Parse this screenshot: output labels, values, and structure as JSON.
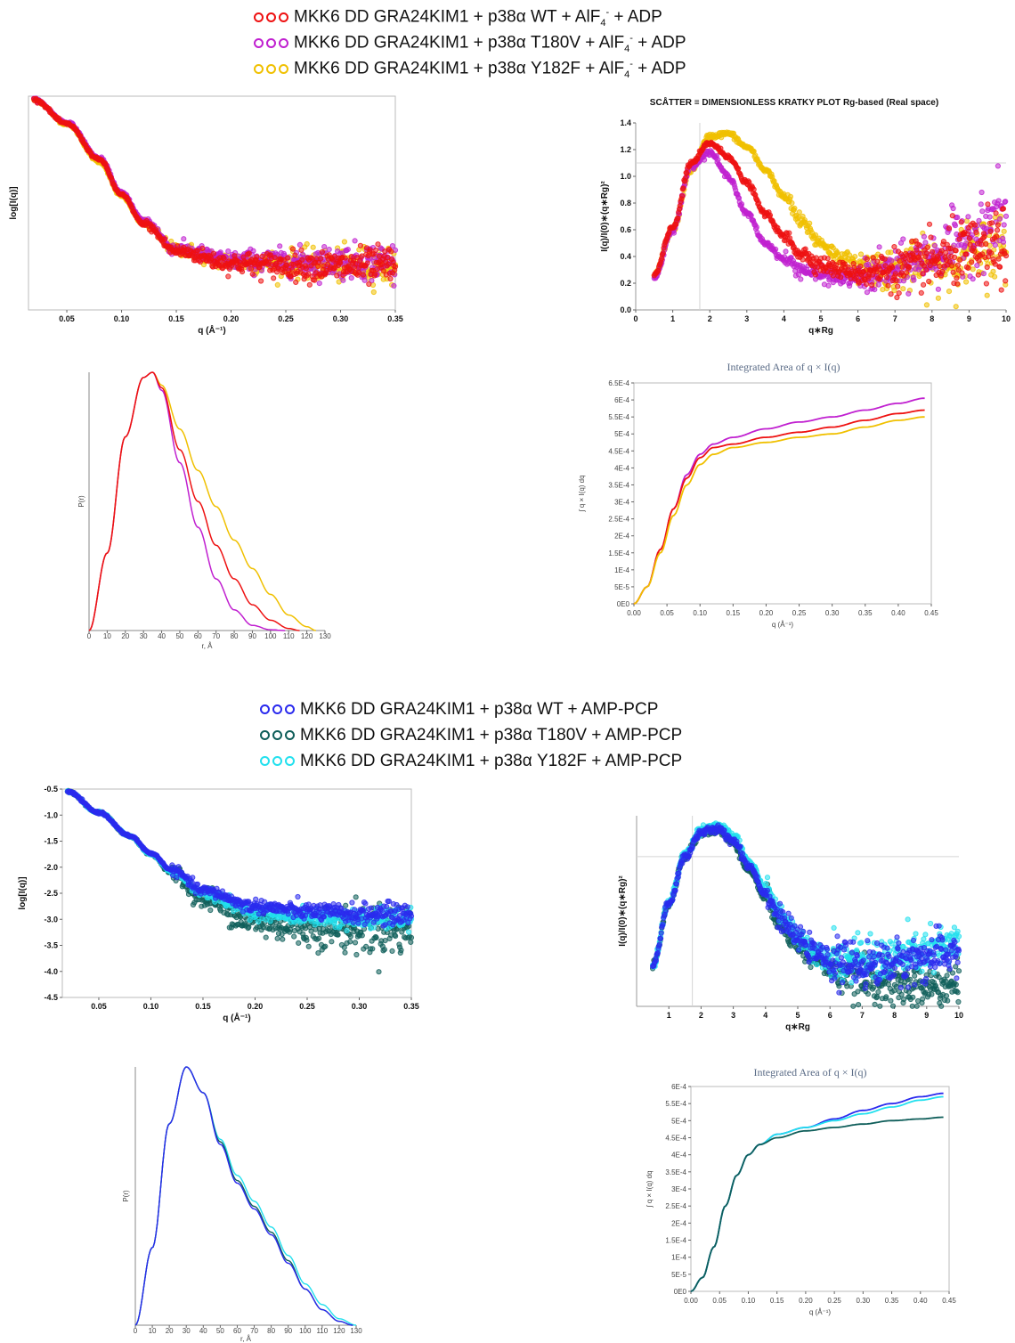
{
  "legend_top": [
    {
      "text": "MKK6 DD GRA24KIM1 + p38α WT + AlF",
      "sub": "4",
      "sup": "-",
      "tail": " + ADP",
      "color": "#ee1111"
    },
    {
      "text": "MKK6 DD GRA24KIM1 + p38α T180V + AlF",
      "sub": "4",
      "sup": "-",
      "tail": " + ADP",
      "color": "#c020d0"
    },
    {
      "text": "MKK6 DD GRA24KIM1 + p38α Y182F + AlF",
      "sub": "4",
      "sup": "-",
      "tail": " + ADP",
      "color": "#f0c000"
    }
  ],
  "legend_bottom": [
    {
      "text": "MKK6 DD GRA24KIM1 + p38α WT + AMP-PCP",
      "color": "#2a2aee"
    },
    {
      "text": "MKK6 DD GRA24KIM1 + p38α T180V + AMP-PCP",
      "color": "#0f5e5a"
    },
    {
      "text": "MKK6 DD GRA24KIM1 + p38α Y182F + AMP-PCP",
      "color": "#22e0ee"
    }
  ],
  "chart_data": [
    {
      "type": "scatter",
      "panel": "top-left",
      "title": "",
      "xlabel": "q (Å⁻¹)",
      "ylabel": "log[I(q)]",
      "xlim": [
        0.015,
        0.35
      ],
      "ylim": [
        -3.6,
        -0.5
      ],
      "xticks": [
        "0.05",
        "0.10",
        "0.15",
        "0.20",
        "0.25",
        "0.30",
        "0.35"
      ],
      "yticks": [],
      "series": [
        {
          "color": "#f0c000",
          "x": [
            0.02,
            0.05,
            0.08,
            0.1,
            0.12,
            0.15,
            0.2,
            0.25,
            0.3,
            0.35
          ],
          "y": [
            -0.55,
            -0.9,
            -1.45,
            -1.95,
            -2.35,
            -2.72,
            -2.9,
            -2.92,
            -2.95,
            -2.95
          ]
        },
        {
          "color": "#c020d0",
          "x": [
            0.02,
            0.05,
            0.08,
            0.1,
            0.12,
            0.15,
            0.2,
            0.25,
            0.3,
            0.35
          ],
          "y": [
            -0.55,
            -0.88,
            -1.4,
            -1.9,
            -2.3,
            -2.72,
            -2.88,
            -2.9,
            -2.9,
            -2.9
          ]
        },
        {
          "color": "#ee1111",
          "x": [
            0.02,
            0.05,
            0.08,
            0.1,
            0.12,
            0.15,
            0.2,
            0.25,
            0.3,
            0.35
          ],
          "y": [
            -0.55,
            -0.9,
            -1.42,
            -1.93,
            -2.35,
            -2.75,
            -2.92,
            -2.95,
            -2.97,
            -2.97
          ]
        }
      ]
    },
    {
      "type": "scatter",
      "panel": "top-right",
      "title": "SCÅTTER ≡ DIMENSIONLESS KRATKY PLOT Rg-based (Real space)",
      "xlabel": "q∗Rg",
      "ylabel": "I(q)/I(0)∗(q∗Rg)²",
      "xlim": [
        0,
        10
      ],
      "ylim": [
        0,
        1.4
      ],
      "xticks": [
        "0",
        "1",
        "2",
        "3",
        "4",
        "5",
        "6",
        "7",
        "8",
        "9",
        "10"
      ],
      "yticks": [
        "0.0",
        "0.2",
        "0.4",
        "0.6",
        "0.8",
        "1.0",
        "1.2",
        "1.4"
      ],
      "series": [
        {
          "color": "#f0c000",
          "x": [
            0.5,
            1.0,
            1.5,
            2.0,
            2.5,
            3.0,
            3.5,
            4.0,
            4.5,
            5.0,
            5.5,
            6.0,
            7.0,
            8.0,
            9.0,
            10.0
          ],
          "y": [
            0.26,
            0.6,
            1.05,
            1.3,
            1.32,
            1.22,
            1.05,
            0.85,
            0.65,
            0.5,
            0.4,
            0.33,
            0.3,
            0.33,
            0.4,
            0.5
          ]
        },
        {
          "color": "#c020d0",
          "x": [
            0.5,
            1.0,
            1.5,
            2.0,
            2.5,
            3.0,
            3.5,
            4.0,
            4.5,
            5.0,
            5.5,
            6.0,
            7.0,
            8.0,
            9.0,
            10.0
          ],
          "y": [
            0.24,
            0.6,
            1.08,
            1.18,
            1.0,
            0.72,
            0.5,
            0.38,
            0.3,
            0.26,
            0.24,
            0.24,
            0.3,
            0.4,
            0.55,
            0.7
          ]
        },
        {
          "color": "#ee1111",
          "x": [
            0.5,
            1.0,
            1.5,
            2.0,
            2.5,
            3.0,
            3.5,
            4.0,
            4.5,
            5.0,
            5.5,
            6.0,
            7.0,
            8.0,
            9.0,
            10.0
          ],
          "y": [
            0.26,
            0.62,
            1.1,
            1.25,
            1.15,
            0.95,
            0.72,
            0.55,
            0.42,
            0.34,
            0.3,
            0.28,
            0.3,
            0.36,
            0.42,
            0.48
          ]
        }
      ],
      "guides": {
        "x": 1.73,
        "y": 1.1
      }
    },
    {
      "type": "line",
      "panel": "top-middle-left",
      "title": "",
      "xlabel": "r, Å",
      "ylabel": "P(r)",
      "xlim": [
        0,
        130
      ],
      "ylim": [
        0,
        1
      ],
      "xticks": [
        "0",
        "10",
        "20",
        "30",
        "40",
        "50",
        "60",
        "70",
        "80",
        "90",
        "100",
        "110",
        "120",
        "130"
      ],
      "series": [
        {
          "color": "#f0c000",
          "x": [
            0,
            10,
            20,
            30,
            35,
            40,
            50,
            60,
            70,
            80,
            90,
            100,
            110,
            120,
            125
          ],
          "y": [
            0,
            0.3,
            0.75,
            0.98,
            1.0,
            0.95,
            0.78,
            0.62,
            0.48,
            0.35,
            0.24,
            0.14,
            0.06,
            0.015,
            0
          ]
        },
        {
          "color": "#c020d0",
          "x": [
            0,
            10,
            20,
            30,
            35,
            40,
            50,
            60,
            70,
            80,
            90,
            100,
            108
          ],
          "y": [
            0,
            0.3,
            0.75,
            0.98,
            1.0,
            0.93,
            0.65,
            0.4,
            0.2,
            0.08,
            0.02,
            0.003,
            0
          ]
        },
        {
          "color": "#ee1111",
          "x": [
            0,
            10,
            20,
            30,
            35,
            40,
            50,
            60,
            70,
            80,
            90,
            100,
            110,
            116
          ],
          "y": [
            0,
            0.3,
            0.75,
            0.98,
            1.0,
            0.94,
            0.7,
            0.5,
            0.33,
            0.2,
            0.1,
            0.04,
            0.008,
            0
          ]
        }
      ]
    },
    {
      "type": "line",
      "panel": "top-middle-right",
      "title": "Integrated Area of q × I(q)",
      "xlabel": "q (Å⁻¹)",
      "ylabel": "∫ q × I(q) dq",
      "xlim": [
        0,
        0.45
      ],
      "ylim": [
        0,
        0.00065
      ],
      "xticks": [
        "0.00",
        "0.05",
        "0.10",
        "0.15",
        "0.20",
        "0.25",
        "0.30",
        "0.35",
        "0.40",
        "0.45"
      ],
      "yticks": [
        "0E0",
        "5E-5",
        "1E-4",
        "1.5E-4",
        "2E-4",
        "2.5E-4",
        "3E-4",
        "3.5E-4",
        "4E-4",
        "4.5E-4",
        "5E-4",
        "5.5E-4",
        "6E-4",
        "6.5E-4"
      ],
      "series": [
        {
          "color": "#c020d0",
          "x": [
            0.0,
            0.02,
            0.04,
            0.06,
            0.08,
            0.1,
            0.12,
            0.15,
            0.2,
            0.25,
            0.3,
            0.35,
            0.4,
            0.44
          ],
          "y": [
            0.0,
            5e-05,
            0.00016,
            0.00028,
            0.00038,
            0.00044,
            0.00047,
            0.00049,
            0.000515,
            0.000535,
            0.00055,
            0.00057,
            0.00059,
            0.000605
          ]
        },
        {
          "color": "#ee1111",
          "x": [
            0.0,
            0.02,
            0.04,
            0.06,
            0.08,
            0.1,
            0.12,
            0.15,
            0.2,
            0.25,
            0.3,
            0.35,
            0.4,
            0.44
          ],
          "y": [
            0.0,
            5e-05,
            0.00016,
            0.00028,
            0.00037,
            0.00043,
            0.00046,
            0.00047,
            0.00049,
            0.000505,
            0.00052,
            0.00054,
            0.00056,
            0.00057
          ]
        },
        {
          "color": "#f0c000",
          "x": [
            0.0,
            0.02,
            0.04,
            0.06,
            0.08,
            0.1,
            0.12,
            0.15,
            0.2,
            0.25,
            0.3,
            0.35,
            0.4,
            0.44
          ],
          "y": [
            0.0,
            5e-05,
            0.00015,
            0.00026,
            0.00035,
            0.00041,
            0.00044,
            0.00046,
            0.000475,
            0.00049,
            0.0005,
            0.00052,
            0.00054,
            0.00055
          ]
        }
      ]
    },
    {
      "type": "scatter",
      "panel": "bottom-left",
      "title": "",
      "xlabel": "q (Å⁻¹)",
      "ylabel": "log[I(q)]",
      "xlim": [
        0.015,
        0.35
      ],
      "ylim": [
        -4.5,
        -0.5
      ],
      "xticks": [
        "0.05",
        "0.10",
        "0.15",
        "0.20",
        "0.25",
        "0.30",
        "0.35"
      ],
      "yticks": [
        "-0.5",
        "-1.0",
        "-1.5",
        "-2.0",
        "-2.5",
        "-3.0",
        "-3.5",
        "-4.0",
        "-4.5"
      ],
      "series": [
        {
          "color": "#0f5e5a",
          "x": [
            0.02,
            0.05,
            0.08,
            0.1,
            0.12,
            0.15,
            0.2,
            0.25,
            0.3,
            0.35
          ],
          "y": [
            -0.55,
            -0.95,
            -1.4,
            -1.75,
            -2.1,
            -2.6,
            -3.05,
            -3.15,
            -3.2,
            -3.2
          ]
        },
        {
          "color": "#22e0ee",
          "x": [
            0.02,
            0.05,
            0.08,
            0.1,
            0.12,
            0.15,
            0.2,
            0.25,
            0.3,
            0.35
          ],
          "y": [
            -0.55,
            -0.95,
            -1.4,
            -1.75,
            -2.08,
            -2.5,
            -2.85,
            -2.95,
            -3.0,
            -3.0
          ]
        },
        {
          "color": "#2a2aee",
          "x": [
            0.02,
            0.05,
            0.08,
            0.1,
            0.12,
            0.15,
            0.2,
            0.25,
            0.3,
            0.35
          ],
          "y": [
            -0.55,
            -0.95,
            -1.4,
            -1.73,
            -2.05,
            -2.45,
            -2.75,
            -2.85,
            -2.9,
            -2.9
          ]
        }
      ]
    },
    {
      "type": "scatter",
      "panel": "bottom-right",
      "title": "",
      "xlabel": "q∗Rg",
      "ylabel": "I(q)/I(0)∗(q∗Rg)²",
      "xlim": [
        0,
        10
      ],
      "ylim": [
        0,
        1.4
      ],
      "xticks": [
        "1",
        "2",
        "3",
        "4",
        "5",
        "6",
        "7",
        "8",
        "9",
        "10"
      ],
      "yticks": [],
      "series": [
        {
          "color": "#0f5e5a",
          "x": [
            0.5,
            1.0,
            1.5,
            2.0,
            2.5,
            3.0,
            3.5,
            4.0,
            4.5,
            5.0,
            5.5,
            6.0,
            7.0,
            8.0,
            9.0,
            10.0
          ],
          "y": [
            0.3,
            0.75,
            1.1,
            1.28,
            1.3,
            1.2,
            1.0,
            0.8,
            0.6,
            0.45,
            0.35,
            0.28,
            0.2,
            0.15,
            0.14,
            0.15
          ]
        },
        {
          "color": "#22e0ee",
          "x": [
            0.5,
            1.0,
            1.5,
            2.0,
            2.5,
            3.0,
            3.5,
            4.0,
            4.5,
            5.0,
            5.5,
            6.0,
            7.0,
            8.0,
            9.0,
            10.0
          ],
          "y": [
            0.3,
            0.76,
            1.12,
            1.3,
            1.33,
            1.25,
            1.06,
            0.86,
            0.66,
            0.52,
            0.42,
            0.36,
            0.33,
            0.36,
            0.4,
            0.45
          ]
        },
        {
          "color": "#2a2aee",
          "x": [
            0.5,
            1.0,
            1.5,
            2.0,
            2.5,
            3.0,
            3.5,
            4.0,
            4.5,
            5.0,
            5.5,
            6.0,
            7.0,
            8.0,
            9.0,
            10.0
          ],
          "y": [
            0.3,
            0.75,
            1.1,
            1.28,
            1.3,
            1.22,
            1.03,
            0.83,
            0.63,
            0.5,
            0.4,
            0.33,
            0.3,
            0.32,
            0.36,
            0.4
          ]
        }
      ],
      "guides": {
        "x": 1.73,
        "y": 1.1
      }
    },
    {
      "type": "line",
      "panel": "bottom-middle-left",
      "title": "",
      "xlabel": "r, Å",
      "ylabel": "P(r)",
      "xlim": [
        0,
        130
      ],
      "ylim": [
        0,
        1
      ],
      "xticks": [
        "0",
        "10",
        "20",
        "30",
        "40",
        "50",
        "60",
        "70",
        "80",
        "90",
        "100",
        "110",
        "120",
        "130"
      ],
      "series": [
        {
          "color": "#22e0ee",
          "x": [
            0,
            10,
            20,
            30,
            40,
            50,
            60,
            70,
            80,
            90,
            100,
            110,
            120,
            130
          ],
          "y": [
            0,
            0.3,
            0.78,
            1.0,
            0.9,
            0.72,
            0.58,
            0.48,
            0.38,
            0.27,
            0.16,
            0.08,
            0.025,
            0
          ]
        },
        {
          "color": "#0f5e5a",
          "x": [
            0,
            10,
            20,
            30,
            40,
            50,
            60,
            70,
            80,
            90,
            100,
            110,
            120,
            128
          ],
          "y": [
            0,
            0.3,
            0.78,
            1.0,
            0.9,
            0.71,
            0.56,
            0.46,
            0.36,
            0.25,
            0.14,
            0.06,
            0.015,
            0
          ]
        },
        {
          "color": "#2a2aee",
          "x": [
            0,
            10,
            20,
            30,
            40,
            50,
            60,
            70,
            80,
            90,
            100,
            110,
            120,
            128
          ],
          "y": [
            0,
            0.3,
            0.78,
            1.0,
            0.9,
            0.7,
            0.55,
            0.45,
            0.35,
            0.24,
            0.14,
            0.06,
            0.015,
            0
          ]
        }
      ]
    },
    {
      "type": "line",
      "panel": "bottom-middle-right",
      "title": "Integrated Area of q × I(q)",
      "xlabel": "q (Å⁻¹)",
      "ylabel": "∫ q × I(q) dq",
      "xlim": [
        0,
        0.45
      ],
      "ylim": [
        0,
        0.0006
      ],
      "xticks": [
        "0.00",
        "0.05",
        "0.10",
        "0.15",
        "0.20",
        "0.25",
        "0.30",
        "0.35",
        "0.40",
        "0.45"
      ],
      "yticks": [
        "0E0",
        "5E-5",
        "1E-4",
        "1.5E-4",
        "2E-4",
        "2.5E-4",
        "3E-4",
        "3.5E-4",
        "4E-4",
        "4.5E-4",
        "5E-4",
        "5.5E-4",
        "6E-4"
      ],
      "series": [
        {
          "color": "#2a2aee",
          "x": [
            0.0,
            0.02,
            0.04,
            0.06,
            0.08,
            0.1,
            0.12,
            0.15,
            0.2,
            0.25,
            0.3,
            0.35,
            0.4,
            0.44
          ],
          "y": [
            0.0,
            4e-05,
            0.00013,
            0.00025,
            0.00034,
            0.0004,
            0.00043,
            0.00046,
            0.00048,
            0.000505,
            0.00053,
            0.00055,
            0.00057,
            0.00058
          ]
        },
        {
          "color": "#22e0ee",
          "x": [
            0.0,
            0.02,
            0.04,
            0.06,
            0.08,
            0.1,
            0.12,
            0.15,
            0.2,
            0.25,
            0.3,
            0.35,
            0.4,
            0.44
          ],
          "y": [
            0.0,
            4e-05,
            0.00013,
            0.00025,
            0.00034,
            0.0004,
            0.00043,
            0.00046,
            0.00048,
            0.0005,
            0.00052,
            0.00054,
            0.00056,
            0.00057
          ]
        },
        {
          "color": "#0f5e5a",
          "x": [
            0.0,
            0.02,
            0.04,
            0.06,
            0.08,
            0.1,
            0.12,
            0.15,
            0.2,
            0.25,
            0.3,
            0.35,
            0.4,
            0.44
          ],
          "y": [
            0.0,
            4e-05,
            0.00013,
            0.00025,
            0.00034,
            0.0004,
            0.00043,
            0.00045,
            0.00047,
            0.00048,
            0.00049,
            0.0005,
            0.000505,
            0.00051
          ]
        }
      ]
    }
  ]
}
